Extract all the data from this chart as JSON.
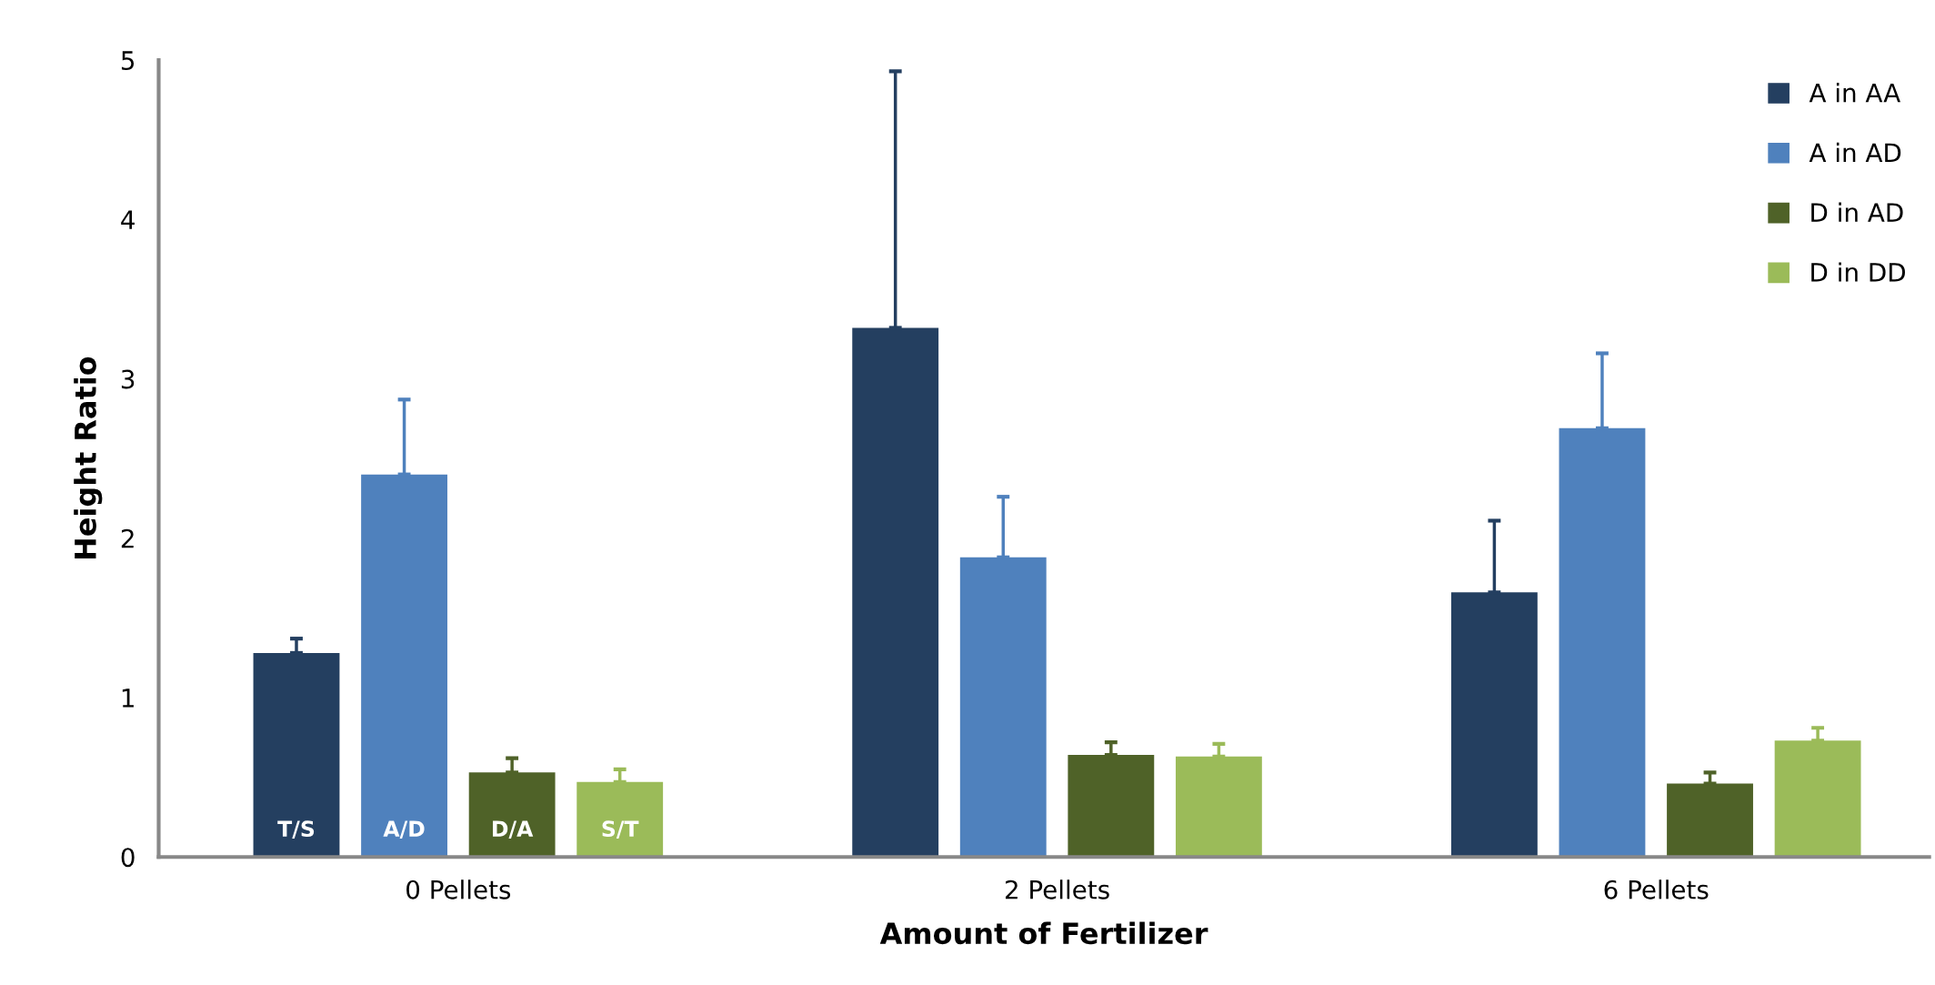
{
  "chart_data": {
    "type": "bar",
    "xlabel": "Amount of Fertilizer",
    "ylabel": "Height Ratio",
    "categories": [
      "0 Pellets",
      "2 Pellets",
      "6 Pellets"
    ],
    "series": [
      {
        "name": "A in AA",
        "color": "#243f60",
        "values": [
          1.28,
          3.32,
          1.66
        ],
        "errors": [
          [
            1.28,
            1.37
          ],
          [
            3.32,
            4.93
          ],
          [
            1.66,
            2.11
          ]
        ]
      },
      {
        "name": "A in AD",
        "color": "#4f81bd",
        "values": [
          2.4,
          1.88,
          2.69
        ],
        "errors": [
          [
            2.4,
            2.87
          ],
          [
            1.88,
            2.26
          ],
          [
            2.69,
            3.16
          ]
        ]
      },
      {
        "name": "D in AD",
        "color": "#4f6228",
        "values": [
          0.53,
          0.64,
          0.46
        ],
        "errors": [
          [
            0.53,
            0.62
          ],
          [
            0.64,
            0.72
          ],
          [
            0.46,
            0.53
          ]
        ]
      },
      {
        "name": "D in DD",
        "color": "#9bbb59",
        "values": [
          0.47,
          0.63,
          0.73
        ],
        "errors": [
          [
            0.47,
            0.55
          ],
          [
            0.63,
            0.71
          ],
          [
            0.73,
            0.81
          ]
        ]
      }
    ],
    "annotations": [
      "T/S",
      "A/D",
      "D/A",
      "S/T"
    ],
    "ylim": [
      0,
      5
    ],
    "yticks": [
      0,
      1,
      2,
      3,
      4,
      5
    ],
    "grid": false,
    "legend": "top right"
  }
}
